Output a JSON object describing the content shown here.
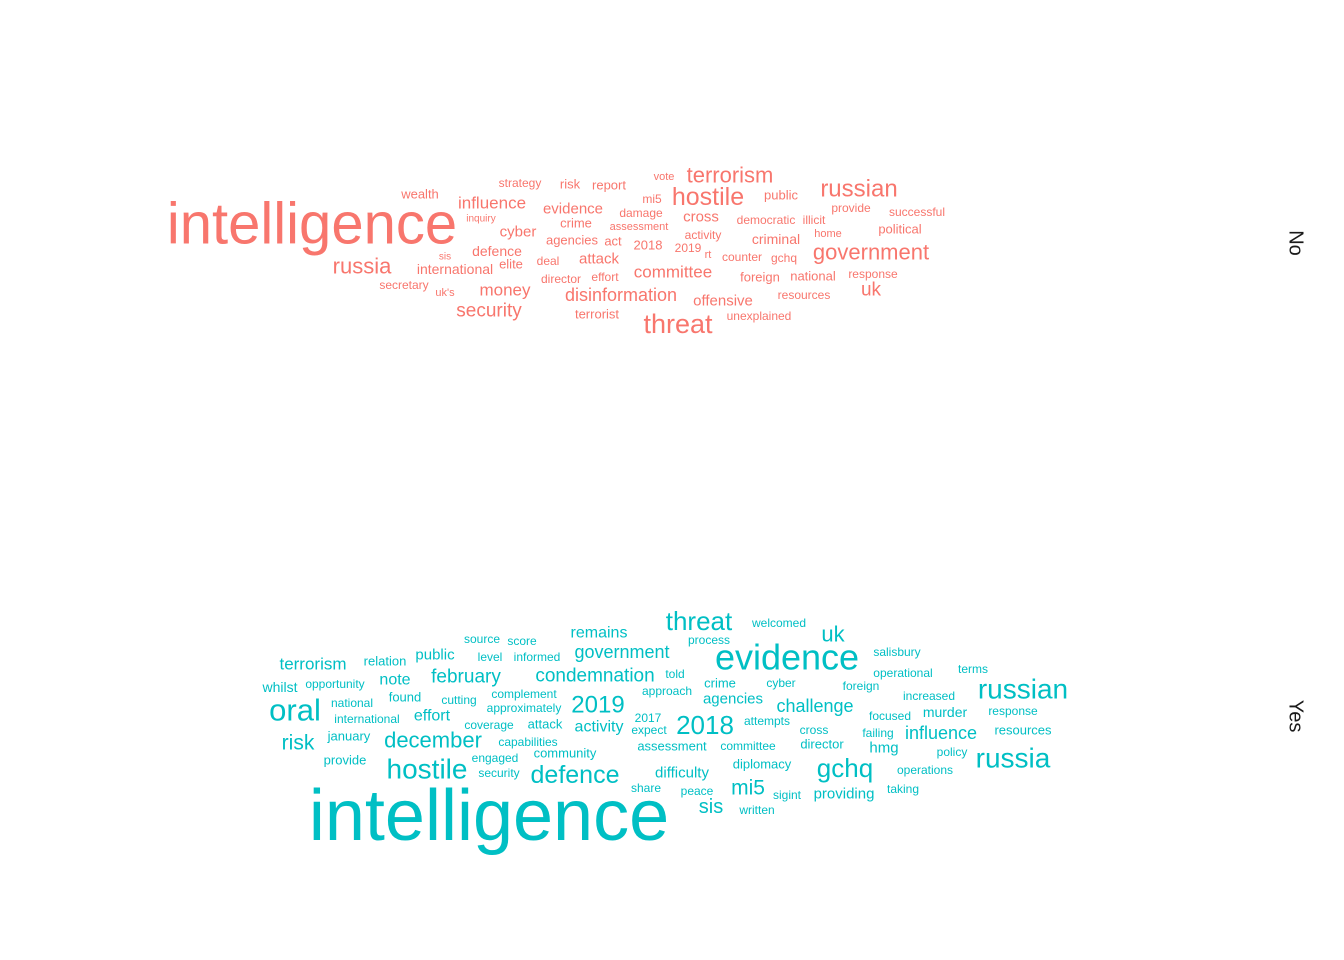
{
  "chart_data": {
    "type": "wordcloud",
    "title": "",
    "facets": [
      {
        "label": "No",
        "color": "#F8766D",
        "words": [
          {
            "text": "intelligence",
            "size": 58
          },
          {
            "text": "hostile",
            "size": 25
          },
          {
            "text": "threat",
            "size": 27
          },
          {
            "text": "russian",
            "size": 24
          },
          {
            "text": "terrorism",
            "size": 22
          },
          {
            "text": "government",
            "size": 22
          },
          {
            "text": "russia",
            "size": 22
          },
          {
            "text": "security",
            "size": 19
          },
          {
            "text": "disinformation",
            "size": 18
          },
          {
            "text": "committee",
            "size": 17
          },
          {
            "text": "influence",
            "size": 17
          },
          {
            "text": "money",
            "size": 17
          },
          {
            "text": "uk",
            "size": 19
          },
          {
            "text": "evidence",
            "size": 15
          },
          {
            "text": "cyber",
            "size": 15
          },
          {
            "text": "cross",
            "size": 15
          },
          {
            "text": "attack",
            "size": 15
          },
          {
            "text": "offensive",
            "size": 15
          },
          {
            "text": "criminal",
            "size": 14
          },
          {
            "text": "defence",
            "size": 14
          },
          {
            "text": "international",
            "size": 14
          },
          {
            "text": "agencies",
            "size": 13
          },
          {
            "text": "crime",
            "size": 13
          },
          {
            "text": "act",
            "size": 13
          },
          {
            "text": "foreign",
            "size": 13
          },
          {
            "text": "national",
            "size": 13
          },
          {
            "text": "public",
            "size": 13
          },
          {
            "text": "report",
            "size": 13
          },
          {
            "text": "risk",
            "size": 13
          },
          {
            "text": "wealth",
            "size": 13
          },
          {
            "text": "political",
            "size": 13
          },
          {
            "text": "terrorist",
            "size": 13
          },
          {
            "text": "elite",
            "size": 13
          },
          {
            "text": "2018",
            "size": 13
          },
          {
            "text": "strategy",
            "size": 12
          },
          {
            "text": "2019",
            "size": 12
          },
          {
            "text": "democratic",
            "size": 12
          },
          {
            "text": "illicit",
            "size": 12
          },
          {
            "text": "successful",
            "size": 12
          },
          {
            "text": "activity",
            "size": 12
          },
          {
            "text": "unexplained",
            "size": 12
          },
          {
            "text": "resources",
            "size": 12
          },
          {
            "text": "response",
            "size": 12
          },
          {
            "text": "secretary",
            "size": 12
          },
          {
            "text": "counter",
            "size": 12
          },
          {
            "text": "gchq",
            "size": 12
          },
          {
            "text": "deal",
            "size": 12
          },
          {
            "text": "director",
            "size": 12
          },
          {
            "text": "effort",
            "size": 12
          },
          {
            "text": "damage",
            "size": 12
          },
          {
            "text": "provide",
            "size": 12
          },
          {
            "text": "mi5",
            "size": 12
          },
          {
            "text": "uk's",
            "size": 11
          },
          {
            "text": "vote",
            "size": 11
          },
          {
            "text": "assessment",
            "size": 11
          },
          {
            "text": "rt",
            "size": 11
          },
          {
            "text": "home",
            "size": 11
          },
          {
            "text": "inquiry",
            "size": 10
          },
          {
            "text": "sis",
            "size": 10
          }
        ]
      },
      {
        "label": "Yes",
        "color": "#00BFC4",
        "words": [
          {
            "text": "intelligence",
            "size": 72
          },
          {
            "text": "evidence",
            "size": 36
          },
          {
            "text": "oral",
            "size": 31
          },
          {
            "text": "russian",
            "size": 28
          },
          {
            "text": "russia",
            "size": 28
          },
          {
            "text": "hostile",
            "size": 28
          },
          {
            "text": "threat",
            "size": 26
          },
          {
            "text": "2018",
            "size": 26
          },
          {
            "text": "gchq",
            "size": 26
          },
          {
            "text": "defence",
            "size": 25
          },
          {
            "text": "2019",
            "size": 24
          },
          {
            "text": "december",
            "size": 22
          },
          {
            "text": "uk",
            "size": 22
          },
          {
            "text": "risk",
            "size": 21
          },
          {
            "text": "mi5",
            "size": 21
          },
          {
            "text": "sis",
            "size": 20
          },
          {
            "text": "condemnation",
            "size": 19
          },
          {
            "text": "government",
            "size": 18
          },
          {
            "text": "february",
            "size": 19
          },
          {
            "text": "challenge",
            "size": 18
          },
          {
            "text": "influence",
            "size": 18
          },
          {
            "text": "terrorism",
            "size": 17
          },
          {
            "text": "remains",
            "size": 16
          },
          {
            "text": "note",
            "size": 16
          },
          {
            "text": "activity",
            "size": 16
          },
          {
            "text": "effort",
            "size": 16
          },
          {
            "text": "difficulty",
            "size": 15
          },
          {
            "text": "providing",
            "size": 15
          },
          {
            "text": "public",
            "size": 15
          },
          {
            "text": "agencies",
            "size": 15
          },
          {
            "text": "hmg",
            "size": 15
          },
          {
            "text": "murder",
            "size": 14
          },
          {
            "text": "whilst",
            "size": 14
          },
          {
            "text": "relation",
            "size": 13
          },
          {
            "text": "found",
            "size": 13
          },
          {
            "text": "crime",
            "size": 13
          },
          {
            "text": "assessment",
            "size": 13
          },
          {
            "text": "community",
            "size": 13
          },
          {
            "text": "january",
            "size": 13
          },
          {
            "text": "director",
            "size": 13
          },
          {
            "text": "diplomacy",
            "size": 13
          },
          {
            "text": "resources",
            "size": 13
          },
          {
            "text": "attack",
            "size": 13
          },
          {
            "text": "provide",
            "size": 13
          },
          {
            "text": "operations",
            "size": 12
          },
          {
            "text": "increased",
            "size": 12
          },
          {
            "text": "cutting",
            "size": 12
          },
          {
            "text": "cyber",
            "size": 12
          },
          {
            "text": "foreign",
            "size": 12
          },
          {
            "text": "response",
            "size": 12
          },
          {
            "text": "approximately",
            "size": 12
          },
          {
            "text": "complement",
            "size": 12
          },
          {
            "text": "capabilities",
            "size": 12
          },
          {
            "text": "national",
            "size": 12
          },
          {
            "text": "international",
            "size": 12
          },
          {
            "text": "opportunity",
            "size": 12
          },
          {
            "text": "focused",
            "size": 12
          },
          {
            "text": "failing",
            "size": 12
          },
          {
            "text": "operational",
            "size": 12
          },
          {
            "text": "terms",
            "size": 12
          },
          {
            "text": "salisbury",
            "size": 12
          },
          {
            "text": "welcomed",
            "size": 12
          },
          {
            "text": "process",
            "size": 12
          },
          {
            "text": "source",
            "size": 12
          },
          {
            "text": "score",
            "size": 12
          },
          {
            "text": "level",
            "size": 12
          },
          {
            "text": "informed",
            "size": 12
          },
          {
            "text": "told",
            "size": 12
          },
          {
            "text": "approach",
            "size": 12
          },
          {
            "text": "cross",
            "size": 12
          },
          {
            "text": "attempts",
            "size": 12
          },
          {
            "text": "committee",
            "size": 12
          },
          {
            "text": "policy",
            "size": 12
          },
          {
            "text": "coverage",
            "size": 12
          },
          {
            "text": "2017",
            "size": 12
          },
          {
            "text": "expect",
            "size": 12
          },
          {
            "text": "engaged",
            "size": 12
          },
          {
            "text": "security",
            "size": 12
          },
          {
            "text": "share",
            "size": 12
          },
          {
            "text": "peace",
            "size": 12
          },
          {
            "text": "sigint",
            "size": 12
          },
          {
            "text": "written",
            "size": 12
          },
          {
            "text": "taking",
            "size": 12
          }
        ]
      }
    ]
  }
}
